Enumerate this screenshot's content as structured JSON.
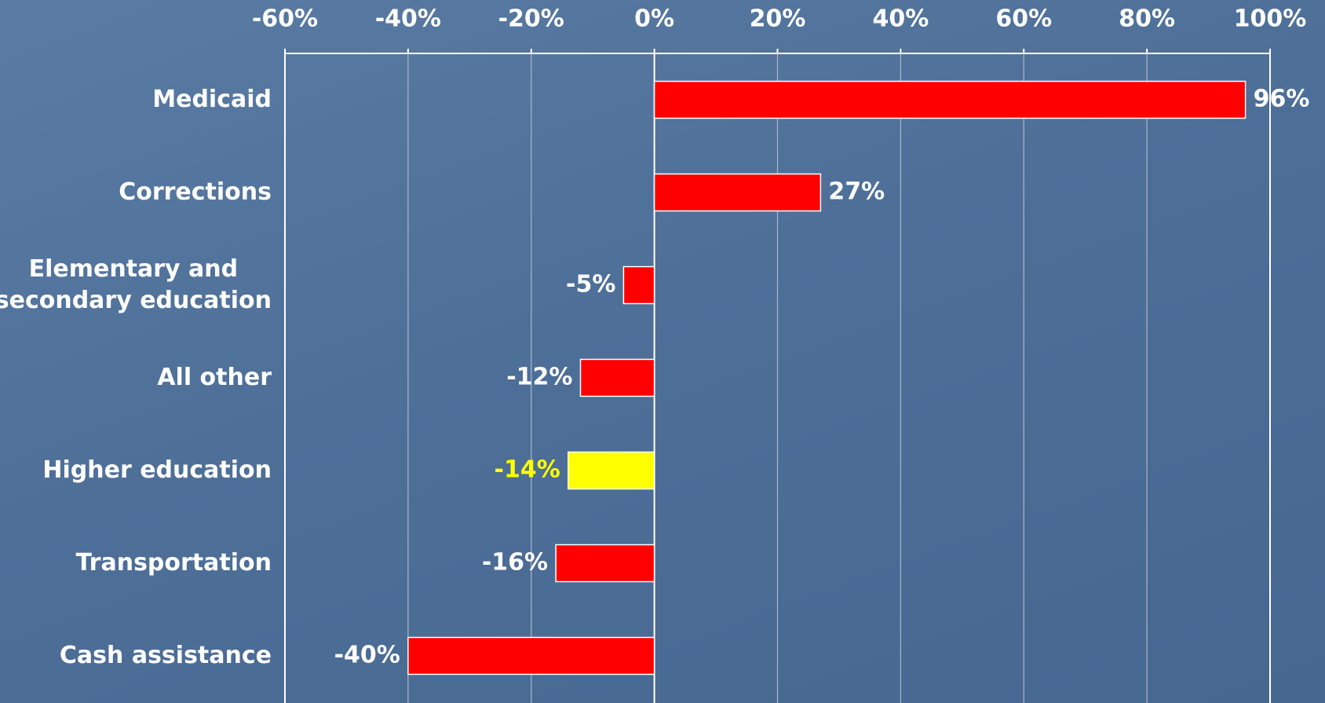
{
  "chart_data": {
    "type": "barh",
    "categories": [
      "Medicaid",
      "Corrections",
      "Elementary and\nsecondary education",
      "All other",
      "Higher education",
      "Transportation",
      "Cash assistance"
    ],
    "values": [
      96,
      27,
      -5,
      -12,
      -14,
      -16,
      -40
    ],
    "value_labels": [
      "96%",
      "27%",
      "-5%",
      "-12%",
      "-14%",
      "-16%",
      "-40%"
    ],
    "colors": [
      "#ff0000",
      "#ff0000",
      "#ff0000",
      "#ff0000",
      "#ffff00",
      "#ff0000",
      "#ff0000"
    ],
    "label_colors": [
      "#ffffff",
      "#ffffff",
      "#ffffff",
      "#ffffff",
      "#ffff00",
      "#ffffff",
      "#ffffff"
    ],
    "xlim": [
      -60,
      100
    ],
    "xticks": [
      {
        "value": -60,
        "label": "-60%"
      },
      {
        "value": -40,
        "label": "-40%"
      },
      {
        "value": -20,
        "label": "-20%"
      },
      {
        "value": 0,
        "label": "0%"
      },
      {
        "value": 20,
        "label": "20%"
      },
      {
        "value": 40,
        "label": "40%"
      },
      {
        "value": 60,
        "label": "60%"
      },
      {
        "value": 80,
        "label": "80%"
      },
      {
        "value": 100,
        "label": "100%"
      }
    ],
    "grid": true
  }
}
